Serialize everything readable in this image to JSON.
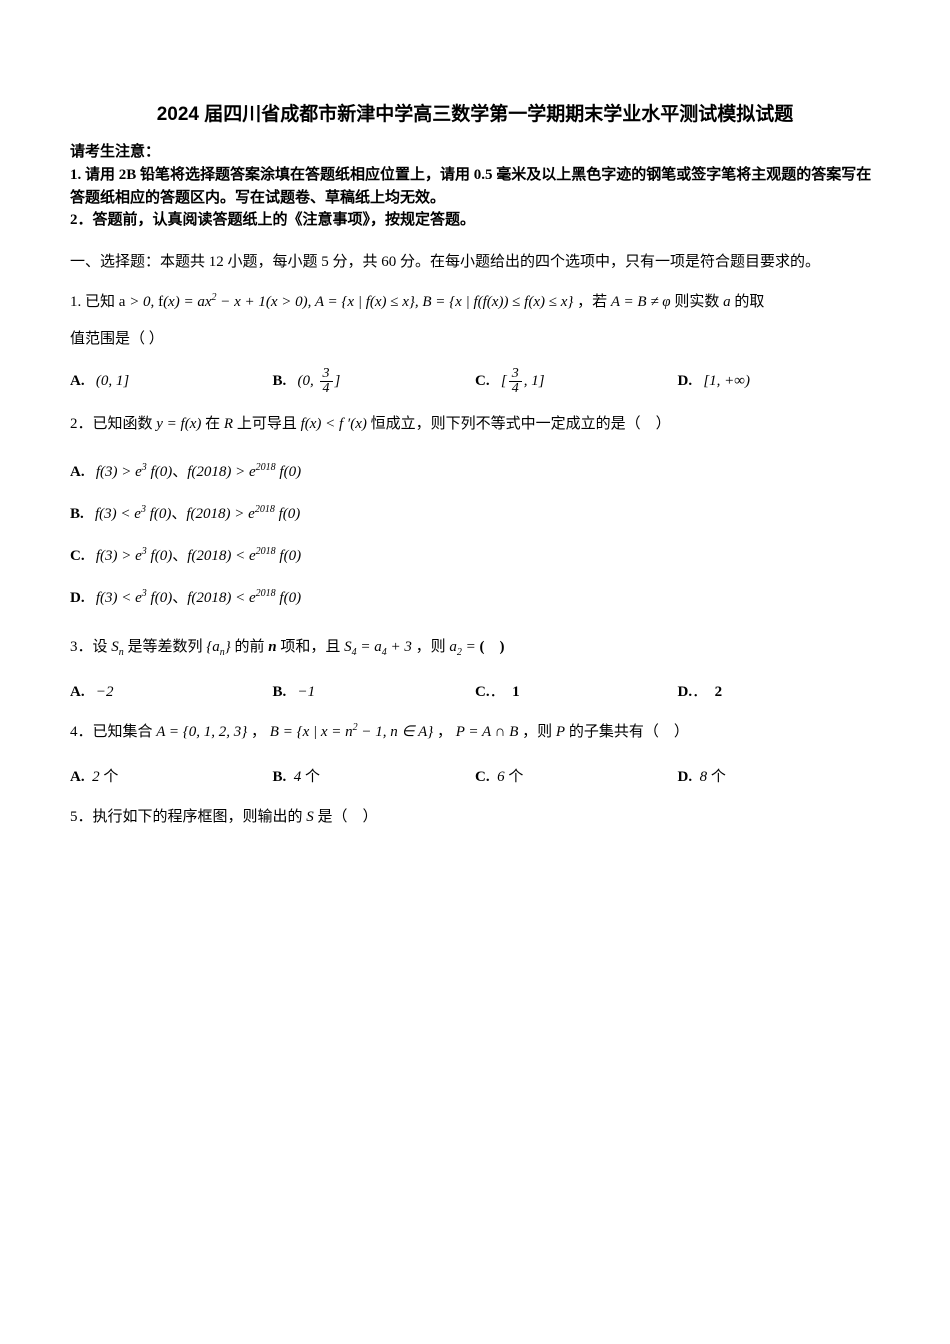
{
  "title": "2024 届四川省成都市新津中学高三数学第一学期期末学业水平测试模拟试题",
  "notice": {
    "header": "请考生注意：",
    "line1": "1. 请用 2B 铅笔将选择题答案涂填在答题纸相应位置上，请用 0.5 毫米及以上黑色字迹的钢笔或签字笔将主观题的答案写在答题纸相应的答题区内。写在试题卷、草稿纸上均无效。",
    "line2": "2．答题前，认真阅读答题纸上的《注意事项》，按规定答题。"
  },
  "section1": "一、选择题：本题共 12 小题，每小题 5 分，共 60 分。在每小题给出的四个选项中，只有一项是符合题目要求的。",
  "q1": {
    "stem_pre": "1. 已知 ",
    "stem_math": "a > 0, f(x) = ax² − x + 1(x > 0), A = {x | f(x) ≤ x}, B = {x | f(f(x)) ≤ f(x) ≤ x}",
    "stem_mid": "，若 ",
    "stem_math2": "A = B ≠ φ",
    "stem_post": " 则实数 a 的取",
    "stem_line2": "值范围是（ ）",
    "optA_label": "A.",
    "optA_val": "(0, 1]",
    "optB_label": "B.",
    "optB_val": "(0, 3/4]",
    "optC_label": "C.",
    "optC_val": "[3/4, 1]",
    "optD_label": "D.",
    "optD_val": "[1, +∞)"
  },
  "q2": {
    "stem_pre": "2．已知函数 ",
    "stem_math1": "y = f(x)",
    "stem_mid1": " 在 R 上可导且 ",
    "stem_math2": "f(x) < f′(x)",
    "stem_post": " 恒成立，则下列不等式中一定成立的是（　）",
    "optA_label": "A.",
    "optA_val": "f(3) > e³ f(0)、f(2018) > e²⁰¹⁸ f(0)",
    "optB_label": "B.",
    "optB_val": "f(3) < e³ f(0)、f(2018) > e²⁰¹⁸ f(0)",
    "optC_label": "C.",
    "optC_val": "f(3) > e³ f(0)、f(2018) < e²⁰¹⁸ f(0)",
    "optD_label": "D.",
    "optD_val": "f(3) < e³ f(0)、f(2018) < e²⁰¹⁸ f(0)"
  },
  "q3": {
    "stem_pre": "3．设 ",
    "stem_math1": "Sₙ",
    "stem_mid1": " 是等差数列 ",
    "stem_math2": "{aₙ}",
    "stem_mid2": " 的前 n 项和，且 ",
    "stem_math3": "S₄ = a₄ + 3",
    "stem_mid3": "，则 ",
    "stem_math4": "a₂ =",
    "stem_post": "(　)",
    "optA_label": "A.",
    "optA_val": "−2",
    "optB_label": "B.",
    "optB_val": "−1",
    "optC_label": "C.",
    "optC_val": "1",
    "optD_label": "D.",
    "optD_val": "2"
  },
  "q4": {
    "stem_pre": "4．已知集合 ",
    "stem_math1": "A = {0, 1, 2, 3}",
    "stem_mid1": "，",
    "stem_math2": "B = {x | x = n² − 1, n ∈ A}",
    "stem_mid2": "，",
    "stem_math3": "P = A ∩ B",
    "stem_mid3": "，则 P 的子集共有（　）",
    "optA_label": "A.",
    "optA_val": "2",
    "optA_unit": "个",
    "optB_label": "B.",
    "optB_val": "4",
    "optB_unit": "个",
    "optC_label": "C.",
    "optC_val": "6",
    "optC_unit": "个",
    "optD_label": "D.",
    "optD_val": "8",
    "optD_unit": "个"
  },
  "q5": {
    "stem": "5．执行如下的程序框图，则输出的 S 是（　）"
  }
}
